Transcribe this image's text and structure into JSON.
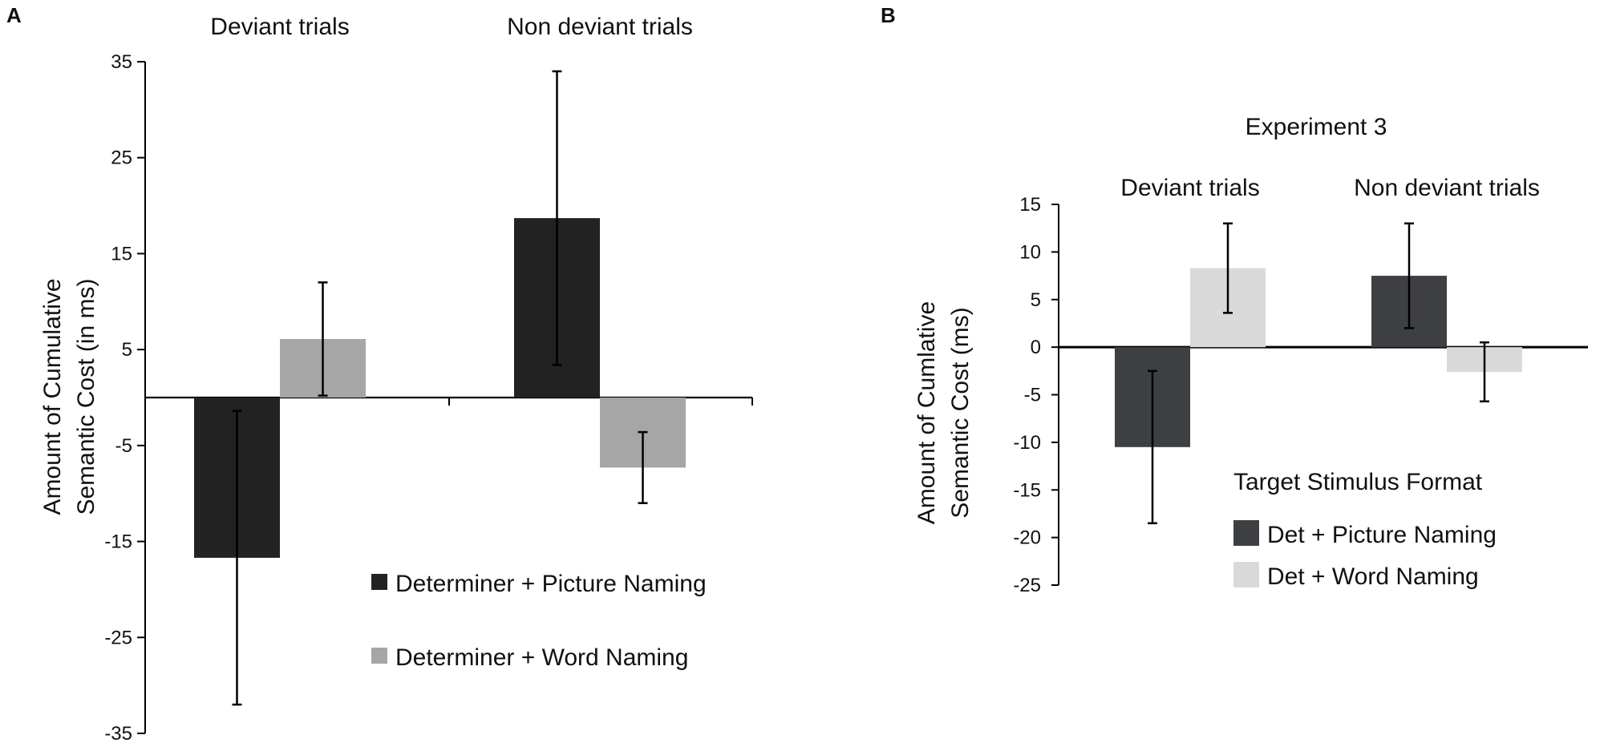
{
  "chart_data": [
    {
      "panel": "A",
      "type": "bar",
      "title": "",
      "categories": [
        "Deviant trials",
        "Non deviant trials"
      ],
      "series": [
        {
          "name": "Determiner + Picture Naming",
          "color": "#222222",
          "values": [
            -16.7,
            18.7
          ],
          "error": [
            15.3,
            15.3
          ]
        },
        {
          "name": "Determiner + Word Naming",
          "color": "#a6a6a6",
          "values": [
            6.1,
            -7.3
          ],
          "error": [
            5.9,
            3.7
          ]
        }
      ],
      "ylabel": "Amount of Cumulative\nSemantic Cost (in ms)",
      "xlabel": "",
      "ylim": [
        -35,
        35
      ],
      "yticks": [
        35,
        25,
        15,
        5,
        -5,
        -15,
        -25,
        -35
      ],
      "legend_title": "",
      "legend_position": "bottom-right",
      "grid": false
    },
    {
      "panel": "B",
      "type": "bar",
      "title": "Experiment 3",
      "categories": [
        "Deviant trials",
        "Non deviant trials"
      ],
      "series": [
        {
          "name": "Det + Picture Naming",
          "color": "#3d3f42",
          "values": [
            -10.5,
            7.5
          ],
          "error": [
            8.0,
            5.5
          ]
        },
        {
          "name": "Det + Word Naming",
          "color": "#d9d9d9",
          "values": [
            8.3,
            -2.6
          ],
          "error": [
            4.7,
            3.1
          ]
        }
      ],
      "ylabel": "Amount of Cumlative\nSemantic Cost (ms)",
      "xlabel": "",
      "ylim": [
        -25,
        15
      ],
      "yticks": [
        15,
        10,
        5,
        0,
        -5,
        -10,
        -15,
        -20,
        -25
      ],
      "legend_title": "Target Stimulus Format",
      "legend_position": "bottom-right",
      "grid": false
    }
  ]
}
